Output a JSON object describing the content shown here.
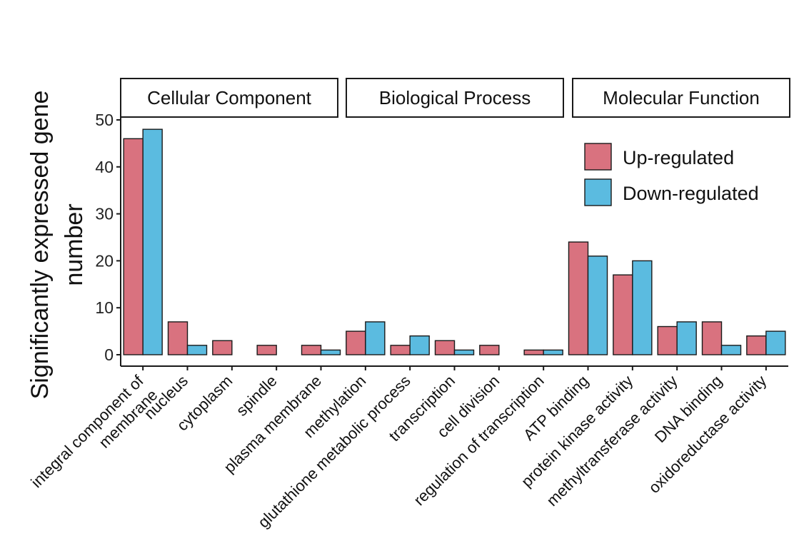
{
  "chart_data": {
    "type": "bar",
    "ylabel": "Significantly expressed gene number",
    "ylim": [
      0,
      50
    ],
    "yticks": [
      "0",
      "10",
      "20",
      "30",
      "40",
      "50"
    ],
    "grid": false,
    "legend_position": "top-right",
    "facets": [
      "Cellular Component",
      "Biological Process",
      "Molecular Function"
    ],
    "categories": [
      "integral component of membrane",
      "nucleus",
      "cytoplasm",
      "spindle",
      "plasma membrane",
      "methylation",
      "glutathione metabolic process",
      "transcription",
      "cell division",
      "regulation of transcription",
      "ATP binding",
      "protein kinase activity",
      "methyltransferase activity",
      "DNA binding",
      "oxidoreductase activity"
    ],
    "category_labels": [
      [
        "integral component of",
        "membrane"
      ],
      [
        "nucleus"
      ],
      [
        "cytoplasm"
      ],
      [
        "spindle"
      ],
      [
        "plasma membrane"
      ],
      [
        "methylation"
      ],
      [
        "glutathione metabolic process"
      ],
      [
        "transcription"
      ],
      [
        "cell division"
      ],
      [
        "regulation of transcription"
      ],
      [
        "ATP binding"
      ],
      [
        "protein kinase activity"
      ],
      [
        "methyltransferase activity"
      ],
      [
        "DNA binding"
      ],
      [
        "oxidoreductase activity"
      ]
    ],
    "series": [
      {
        "name": "Up-regulated",
        "color": "#d9727f",
        "values": [
          46,
          7,
          3,
          2,
          2,
          5,
          2,
          3,
          2,
          1,
          24,
          17,
          6,
          7,
          4
        ]
      },
      {
        "name": "Down-regulated",
        "color": "#5bbbe0",
        "values": [
          48,
          2,
          0,
          0,
          1,
          7,
          4,
          1,
          0,
          1,
          21,
          20,
          7,
          2,
          5
        ]
      }
    ]
  }
}
